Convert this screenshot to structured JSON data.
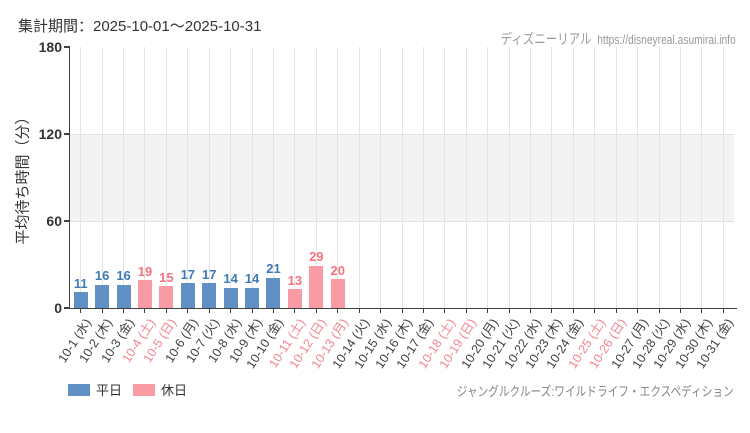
{
  "header": {
    "period_label": "集計期間：2025-10-01～2025-10-31",
    "site_name": "ディズニーリアル",
    "site_url": "https://disneyreal.asumirai.info"
  },
  "chart_data": {
    "type": "bar",
    "title": "",
    "ylabel": "平均待ち時間（分）",
    "ylim": [
      0,
      180
    ],
    "yticks": [
      0,
      60,
      120,
      180
    ],
    "shaded_band": [
      60,
      120
    ],
    "grid": "vertical-per-category",
    "categories": [
      "10-1 (水)",
      "10-2 (木)",
      "10-3 (金)",
      "10-4 (土)",
      "10-5 (日)",
      "10-6 (月)",
      "10-7 (火)",
      "10-8 (水)",
      "10-9 (木)",
      "10-10 (金)",
      "10-11 (土)",
      "10-12 (日)",
      "10-13 (月)",
      "10-14 (火)",
      "10-15 (水)",
      "10-16 (木)",
      "10-17 (金)",
      "10-18 (土)",
      "10-19 (日)",
      "10-20 (月)",
      "10-21 (火)",
      "10-22 (水)",
      "10-23 (木)",
      "10-24 (金)",
      "10-25 (土)",
      "10-26 (日)",
      "10-27 (月)",
      "10-28 (火)",
      "10-29 (水)",
      "10-30 (木)",
      "10-31 (金)"
    ],
    "values": [
      11,
      16,
      16,
      19,
      15,
      17,
      17,
      14,
      14,
      21,
      13,
      29,
      20,
      null,
      null,
      null,
      null,
      null,
      null,
      null,
      null,
      null,
      null,
      null,
      null,
      null,
      null,
      null,
      null,
      null,
      null
    ],
    "day_types": [
      "weekday",
      "weekday",
      "weekday",
      "holiday",
      "holiday",
      "weekday",
      "weekday",
      "weekday",
      "weekday",
      "weekday",
      "holiday",
      "holiday",
      "holiday",
      "weekday",
      "weekday",
      "weekday",
      "weekday",
      "holiday",
      "holiday",
      "weekday",
      "weekday",
      "weekday",
      "weekday",
      "weekday",
      "holiday",
      "holiday",
      "weekday",
      "weekday",
      "weekday",
      "weekday",
      "weekday"
    ],
    "colors": {
      "weekday_bar": "#6191c4",
      "holiday_bar": "#f89ba5",
      "weekday_value": "#3d7ab8",
      "holiday_value": "#f4737f",
      "weekday_tick_label": "#3f3f3f",
      "holiday_tick_label": "#f2858e",
      "axis": "#404040",
      "grid": "#e4e4e4",
      "band": "#f3f3f3"
    }
  },
  "legend": {
    "weekday_label": "平日",
    "holiday_label": "休日"
  },
  "footer": {
    "attraction_name": "ジャングルクルーズ:ワイルドライフ・エクスペディション"
  }
}
